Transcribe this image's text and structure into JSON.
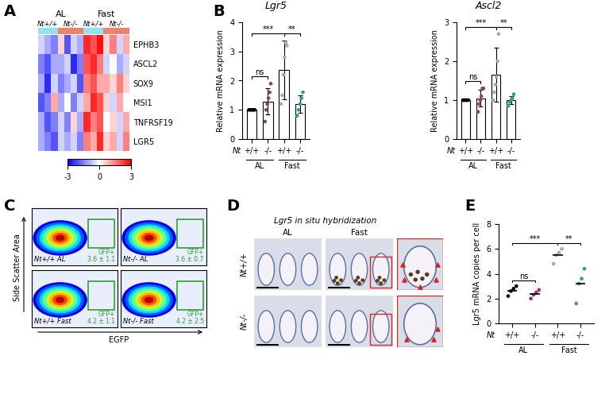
{
  "chart_data": [
    {
      "panel": "A",
      "type": "heatmap",
      "column_groups": [
        "AL",
        "Fast"
      ],
      "genotypes": [
        "Nt+/+",
        "Nt-/-",
        "Nt+/+",
        "Nt-/-"
      ],
      "genotype_counts": [
        3,
        4,
        3,
        4
      ],
      "genotype_colors": [
        "#8fe3ee",
        "#f0826c",
        "#8fe3ee",
        "#f0826c"
      ],
      "rows": [
        "EPHB3",
        "ASCL2",
        "SOX9",
        "MSI1",
        "TNFRSF19",
        "LGR5"
      ],
      "cells": [
        [
          -0.5,
          -1.0,
          -1.5,
          0.5,
          -2.0,
          -0.5,
          -1.0,
          2.5,
          2.0,
          2.8,
          0.5,
          1.5,
          -0.5,
          1.0
        ],
        [
          -1.5,
          -2.0,
          -1.0,
          -1.0,
          -0.5,
          -2.5,
          -1.5,
          2.0,
          2.5,
          1.5,
          -0.5,
          0.0,
          -1.0,
          -0.5
        ],
        [
          -1.0,
          -2.5,
          -0.5,
          -1.5,
          -1.0,
          -0.5,
          -2.0,
          1.5,
          2.0,
          1.0,
          1.0,
          0.5,
          1.5,
          0.5
        ],
        [
          -2.0,
          -1.5,
          1.0,
          -1.0,
          0.0,
          -1.5,
          -0.5,
          1.0,
          2.5,
          2.0,
          0.5,
          -0.5,
          1.0,
          0.0
        ],
        [
          -1.0,
          -2.0,
          -1.5,
          -0.5,
          -1.5,
          0.5,
          -1.0,
          2.5,
          1.5,
          2.0,
          0.0,
          0.5,
          -0.5,
          1.0
        ],
        [
          -1.0,
          -1.5,
          -2.0,
          -0.5,
          -1.0,
          -0.5,
          -1.5,
          1.5,
          1.0,
          2.5,
          0.5,
          1.0,
          -0.5,
          1.5
        ]
      ],
      "colorbar_range": [
        -3,
        3
      ],
      "colorbar_ticks": [
        -3,
        0,
        3
      ]
    },
    {
      "panel": "B",
      "type": "bar",
      "title": "Lgr5",
      "y_label": "Relative mRNA expression",
      "x_prefix": "Nt",
      "categories": [
        "+/+",
        "-/-",
        "+/+",
        "-/-"
      ],
      "groups": [
        "AL",
        "Fast"
      ],
      "values": [
        1.0,
        1.28,
        2.37,
        1.2
      ],
      "errors": [
        0.02,
        0.45,
        1.0,
        0.3
      ],
      "points": [
        [
          1.0,
          1.0,
          1.0,
          1.0,
          1.0
        ],
        [
          0.6,
          1.0,
          1.2,
          1.4,
          1.6,
          1.9
        ],
        [
          1.2,
          1.5,
          2.2,
          2.8,
          3.3,
          3.2
        ],
        [
          0.8,
          1.0,
          1.2,
          1.4,
          1.6
        ]
      ],
      "colors": [
        "#000000",
        "#8e3a72",
        "#aaaaaa",
        "#2e9e8e"
      ],
      "ylim": [
        0,
        4
      ],
      "yticks": [
        0,
        1,
        2,
        3,
        4
      ],
      "comparisons": [
        {
          "pair": [
            0,
            1
          ],
          "label": "ns"
        },
        {
          "pair": [
            0,
            2
          ],
          "label": "***"
        },
        {
          "pair": [
            2,
            3
          ],
          "label": "**"
        }
      ]
    },
    {
      "type": "bar",
      "title": "Ascl2",
      "y_label": "Relative mRNA expression",
      "x_prefix": "Nt",
      "categories": [
        "+/+",
        "-/-",
        "+/+",
        "-/-"
      ],
      "groups": [
        "AL",
        "Fast"
      ],
      "values": [
        1.0,
        1.05,
        1.65,
        1.0
      ],
      "errors": [
        0.02,
        0.22,
        0.7,
        0.1
      ],
      "points": [
        [
          1.0,
          1.0,
          1.0,
          1.0,
          1.0
        ],
        [
          0.7,
          0.9,
          1.0,
          1.1,
          1.3,
          1.3
        ],
        [
          1.0,
          1.2,
          1.4,
          1.6,
          2.0,
          2.7
        ],
        [
          0.85,
          0.95,
          1.0,
          1.05,
          1.15
        ]
      ],
      "colors": [
        "#000000",
        "#8e3a72",
        "#aaaaaa",
        "#2e9e8e"
      ],
      "ylim": [
        0,
        3
      ],
      "yticks": [
        0,
        1,
        2,
        3
      ],
      "comparisons": [
        {
          "pair": [
            0,
            1
          ],
          "label": "ns"
        },
        {
          "pair": [
            0,
            2
          ],
          "label": "***"
        },
        {
          "pair": [
            2,
            3
          ],
          "label": "**"
        }
      ]
    },
    {
      "panel": "C",
      "type": "flow_cytometry",
      "y_label": "Side Scatter Area",
      "x_label": "EGFP",
      "plots": [
        {
          "label": "Nt+/+ AL",
          "gate_label": "GFP+",
          "gate_text": "3.6 ± 1.1"
        },
        {
          "label": "Nt-/- AL",
          "gate_label": "GFP+",
          "gate_text": "3.6 ± 0.7"
        },
        {
          "label": "Nt+/+ Fast",
          "gate_label": "GFP+",
          "gate_text": "4.2 ± 1.1"
        },
        {
          "label": "Nt-/- Fast",
          "gate_label": "GFP+",
          "gate_text": "4.2 ± 2.5"
        }
      ]
    },
    {
      "panel": "D",
      "type": "image",
      "title": "Lgr5 in situ hybridization",
      "columns": [
        "AL",
        "Fast"
      ],
      "rows": [
        "Nt+/+",
        "Nt-/-"
      ]
    },
    {
      "panel": "E",
      "type": "scatter",
      "y_label": "Lgr5 mRNA copies per cell",
      "x_prefix": "Nt",
      "categories": [
        "+/+",
        "-/-",
        "+/+",
        "-/-"
      ],
      "groups": [
        "AL",
        "Fast"
      ],
      "points": [
        [
          2.2,
          2.6,
          2.8,
          3.0
        ],
        [
          2.0,
          2.3,
          2.5,
          2.7
        ],
        [
          4.8,
          5.5,
          5.7,
          6.0
        ],
        [
          1.6,
          3.2,
          3.6,
          4.4
        ]
      ],
      "means": [
        2.65,
        2.4,
        5.5,
        3.2
      ],
      "colors": [
        "#000000",
        "#8e3a72",
        "#aaaaaa",
        "#2e9e8e"
      ],
      "ylim": [
        0,
        8
      ],
      "yticks": [
        0,
        2,
        4,
        6,
        8
      ],
      "comparisons": [
        {
          "pair": [
            0,
            1
          ],
          "label": "ns"
        },
        {
          "pair": [
            0,
            2
          ],
          "label": "***"
        },
        {
          "pair": [
            2,
            3
          ],
          "label": "**"
        }
      ]
    }
  ]
}
